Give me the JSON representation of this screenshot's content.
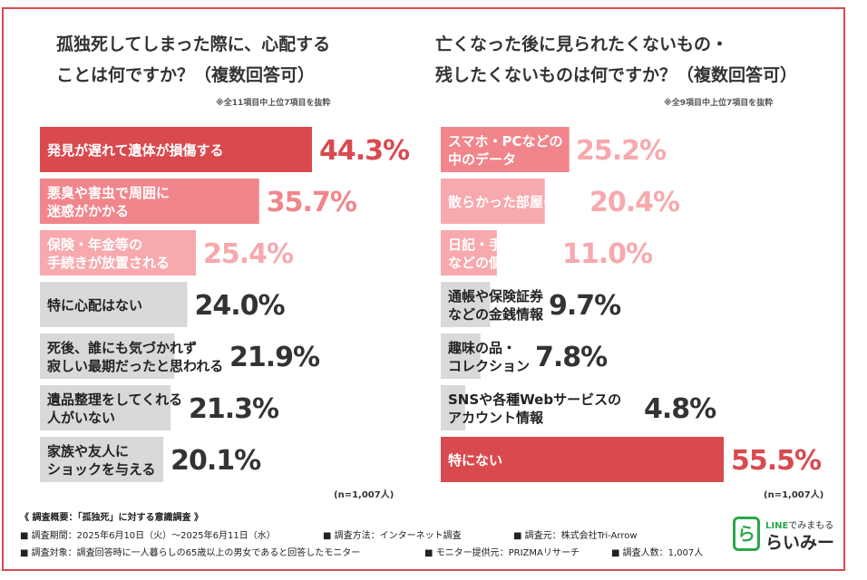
{
  "colors": {
    "frame": "#d94a4f",
    "top": "#d94a4f",
    "mid": "#f0868c",
    "light": "#f7a9ad",
    "gray": "#d9d9d9"
  },
  "left": {
    "title_line1": "孤独死してしまった際に、心配する",
    "title_line2": "ことは何ですか？（複数回答可）",
    "subnote": "※全11項目中上位7項目を抜粋",
    "n_note": "(n=1,007人)"
  },
  "right": {
    "title_line1": "亡くなった後に見られたくないもの・",
    "title_line2": "残したくないものは何ですか？（複数回答可）",
    "subnote": "※全9項目中上位7項目を抜粋",
    "n_note": "(n=1,007人)"
  },
  "chart_data": [
    {
      "type": "bar",
      "title": "孤独死してしまった際に、心配することは何ですか？（複数回答可）",
      "categories": [
        [
          "発見が遅れて遺体が損傷する"
        ],
        [
          "悪臭や害虫で周囲に",
          "迷惑がかかる"
        ],
        [
          "保険・年金等の",
          "手続きが放置される"
        ],
        [
          "特に心配はない"
        ],
        [
          "死後、誰にも気づかれず",
          "寂しい最期だったと思われる"
        ],
        [
          "遺品整理をしてくれる",
          "人がいない"
        ],
        [
          "家族や友人に",
          "ショックを与える"
        ]
      ],
      "values": [
        44.3,
        35.7,
        25.4,
        24.0,
        21.9,
        21.3,
        20.1
      ],
      "value_labels": [
        "44.3%",
        "35.7%",
        "25.4%",
        "24.0%",
        "21.9%",
        "21.3%",
        "20.1%"
      ],
      "unit": "%"
    },
    {
      "type": "bar",
      "title": "亡くなった後に見られたくないもの・残したくないものは何ですか？（複数回答可）",
      "categories": [
        [
          "スマホ・PCなどの",
          "中のデータ"
        ],
        [
          "散らかった部屋やゴミ"
        ],
        [
          "日記・手紙・写真",
          "などの個人的記録"
        ],
        [
          "通帳や保険証券",
          "などの金銭情報"
        ],
        [
          "趣味の品・",
          "コレクション"
        ],
        [
          "SNSや各種Webサービスの",
          "アカウント情報"
        ],
        [
          "特にない"
        ]
      ],
      "values": [
        25.2,
        20.4,
        11.0,
        9.7,
        7.8,
        4.8,
        55.5
      ],
      "value_labels": [
        "25.2%",
        "20.4%",
        "11.0%",
        "9.7%",
        "7.8%",
        "4.8%",
        "55.5%"
      ],
      "unit": "%"
    }
  ],
  "footer": {
    "heading": "《 調査概要：「孤独死」に対する意識調査 》",
    "period": "■ 調査期間：2025年6月10日（火）～2025年6月11日（水）",
    "method": "■ 調査方法：インターネット調査",
    "source": "■ 調査元：株式会社Tri-Arrow",
    "target": "■ 調査対象：調査回答時に一人暮らしの65歳以上の男女であると回答したモニター",
    "provider": "■ モニター提供元：PRIZMAリサーチ",
    "count": "■ 調査人数：1,007人"
  },
  "logo": {
    "mark": "ら",
    "small_line_brand": "LINE",
    "small_line_rest": "でみまもる",
    "name": "らいみー"
  }
}
